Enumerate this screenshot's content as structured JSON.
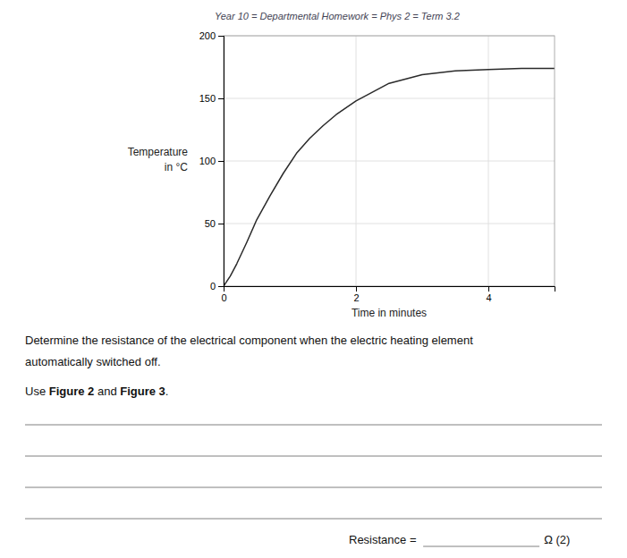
{
  "chart_data": {
    "type": "line",
    "title": "Year 10 = Departmental Homework = Phys 2 = Term 3.2",
    "xlabel": "Time in minutes",
    "ylabel": [
      "Temperature",
      "in °C"
    ],
    "x": [
      0,
      0.1,
      0.2,
      0.35,
      0.5,
      0.7,
      0.9,
      1.1,
      1.3,
      1.5,
      1.7,
      2.0,
      2.5,
      3.0,
      3.5,
      4.0,
      4.5,
      5.0
    ],
    "values": [
      0,
      8,
      18,
      35,
      53,
      72,
      90,
      106,
      118,
      128,
      137,
      148,
      162,
      169,
      172,
      173,
      174,
      174
    ],
    "color": "#2a2a2a",
    "xlim": [
      0,
      5
    ],
    "ylim": [
      0,
      200
    ],
    "xticks": [
      0,
      2,
      4
    ],
    "yticks": [
      0,
      50,
      100,
      150,
      200
    ],
    "grid": true,
    "annotations": [
      "Determine the resistance of the electrical component when the electric heating element",
      "automatically switched off.",
      "Use ",
      "Figure 2",
      " and ",
      "Figure 3",
      ".",
      "Resistance = ",
      "Ω (2)"
    ]
  }
}
